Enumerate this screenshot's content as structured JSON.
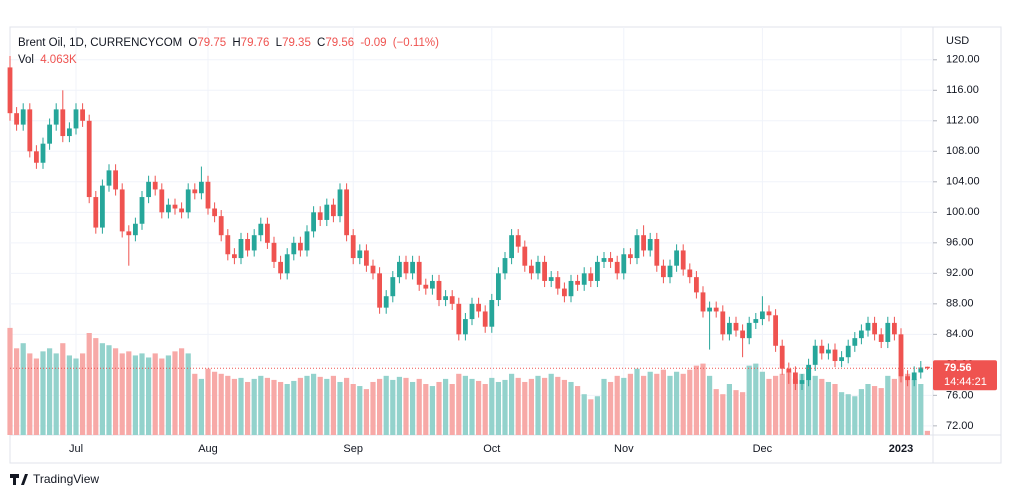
{
  "chart_data": {
    "type": "candlestick",
    "legend": {
      "symbol": "Brent Oil, 1D, CURRENCYCOM",
      "o_label": "O",
      "h_label": "H",
      "l_label": "L",
      "c_label": "C",
      "change": "-0.09",
      "change_pct": "(−0.11%)",
      "vol_label": "Vol",
      "vol_value": "4.063K"
    },
    "currency": "USD",
    "countdown": "14:44:21",
    "brand": "TradingView",
    "up_color": "#26a69a",
    "down_color": "#ef5350",
    "volume_up_color": "#93d2cc",
    "volume_down_color": "#f7a9a7",
    "grid": true,
    "ylim": [
      70.8,
      124.3
    ],
    "yticks": [
      {
        "value": 120,
        "label": "120.00"
      },
      {
        "value": 116,
        "label": "116.00"
      },
      {
        "value": 112,
        "label": "112.00"
      },
      {
        "value": 108,
        "label": "108.00"
      },
      {
        "value": 104,
        "label": "104.00"
      },
      {
        "value": 100,
        "label": "100.00"
      },
      {
        "value": 96,
        "label": "96.00"
      },
      {
        "value": 92,
        "label": "92.00"
      },
      {
        "value": 88,
        "label": "88.00"
      },
      {
        "value": 84,
        "label": "84.00"
      },
      {
        "value": 80,
        "label": "80.00"
      },
      {
        "value": 76,
        "label": "76.00"
      },
      {
        "value": 72,
        "label": "72.00"
      }
    ],
    "volume_lim": [
      0,
      400
    ],
    "categories": [
      null,
      null,
      null,
      null,
      null,
      null,
      null,
      null,
      null,
      null,
      "Jul",
      null,
      null,
      null,
      null,
      null,
      null,
      null,
      null,
      null,
      null,
      null,
      null,
      null,
      null,
      null,
      null,
      null,
      null,
      null,
      "Aug",
      null,
      null,
      null,
      null,
      null,
      null,
      null,
      null,
      null,
      null,
      null,
      null,
      null,
      null,
      null,
      null,
      null,
      null,
      null,
      null,
      null,
      "Sep",
      null,
      null,
      null,
      null,
      null,
      null,
      null,
      null,
      null,
      null,
      null,
      null,
      null,
      null,
      null,
      null,
      null,
      null,
      null,
      null,
      "Oct",
      null,
      null,
      null,
      null,
      null,
      null,
      null,
      null,
      null,
      null,
      null,
      null,
      null,
      null,
      null,
      null,
      null,
      null,
      null,
      "Nov",
      null,
      null,
      null,
      null,
      null,
      null,
      null,
      null,
      null,
      null,
      null,
      null,
      null,
      null,
      null,
      null,
      null,
      null,
      null,
      null,
      "Dec",
      null,
      null,
      null,
      null,
      null,
      null,
      null,
      null,
      null,
      null,
      null,
      null,
      null,
      null,
      null,
      null,
      null,
      null,
      null,
      null,
      "2023",
      null,
      null,
      null,
      null
    ],
    "open": [
      119.0,
      113.0,
      111.5,
      113.5,
      108.0,
      106.5,
      109.0,
      111.5,
      113.5,
      110.0,
      111.0,
      113.5,
      112.0,
      102.0,
      98.0,
      103.5,
      105.5,
      103.0,
      97.5,
      97.0,
      98.5,
      102.0,
      104.0,
      103.0,
      100.0,
      101.0,
      100.5,
      100.0,
      103.0,
      102.5,
      104.0,
      100.5,
      99.5,
      97.0,
      94.5,
      94.0,
      96.5,
      95.0,
      97.0,
      98.5,
      96.0,
      93.5,
      92.0,
      94.5,
      96.0,
      95.0,
      97.5,
      100.0,
      99.0,
      101.0,
      99.5,
      103.0,
      97.0,
      94.0,
      95.0,
      93.0,
      92.0,
      87.5,
      89.0,
      91.5,
      93.5,
      92.0,
      93.5,
      90.5,
      90.0,
      91.0,
      88.5,
      89.0,
      88.0,
      84.0,
      86.0,
      88.0,
      87.0,
      85.0,
      88.5,
      92.0,
      94.0,
      97.0,
      95.5,
      93.0,
      92.0,
      93.5,
      91.0,
      91.5,
      90.0,
      89.0,
      91.0,
      90.5,
      92.0,
      91.0,
      93.5,
      94.0,
      93.5,
      92.0,
      94.5,
      94.0,
      97.0,
      95.0,
      96.5,
      93.0,
      91.5,
      93.0,
      95.0,
      92.5,
      91.5,
      89.5,
      87.0,
      87.5,
      87.0,
      84.0,
      85.5,
      84.5,
      83.5,
      85.5,
      86.0,
      87.0,
      86.5,
      82.5,
      79.5,
      79.0,
      77.5,
      78.0,
      80.0,
      82.5,
      81.5,
      82.0,
      80.5,
      81.0,
      82.5,
      83.5,
      84.5,
      85.5,
      84.0,
      83.0,
      85.5,
      84.0,
      78.5,
      78.0,
      79.0,
      79.75
    ],
    "high": [
      120.5,
      113.8,
      114.3,
      114.3,
      108.8,
      109.8,
      112.3,
      114.3,
      116.0,
      111.8,
      114.3,
      114.3,
      112.8,
      102.8,
      104.3,
      106.3,
      106.3,
      103.8,
      98.3,
      99.3,
      102.8,
      104.8,
      104.8,
      103.8,
      101.8,
      101.8,
      101.3,
      103.8,
      103.8,
      106.0,
      104.8,
      101.3,
      100.3,
      97.8,
      95.3,
      97.3,
      97.3,
      97.8,
      99.3,
      99.3,
      96.8,
      94.3,
      95.3,
      96.8,
      96.8,
      98.3,
      100.8,
      100.8,
      101.8,
      101.8,
      103.8,
      103.8,
      97.8,
      95.8,
      95.8,
      93.8,
      92.8,
      89.8,
      92.3,
      94.3,
      94.3,
      94.3,
      94.3,
      91.3,
      91.8,
      91.8,
      89.8,
      89.8,
      88.8,
      86.8,
      88.8,
      88.8,
      87.8,
      89.3,
      92.8,
      94.8,
      97.8,
      97.8,
      96.3,
      93.8,
      94.3,
      94.3,
      92.3,
      92.3,
      90.8,
      91.8,
      91.8,
      92.8,
      92.8,
      94.3,
      94.8,
      94.8,
      94.3,
      95.3,
      95.3,
      97.8,
      98.3,
      97.3,
      97.3,
      93.8,
      93.8,
      95.8,
      95.8,
      93.3,
      92.3,
      90.3,
      88.3,
      88.3,
      87.8,
      86.3,
      86.3,
      85.3,
      86.3,
      86.8,
      89.0,
      87.8,
      87.3,
      83.3,
      80.3,
      79.8,
      78.8,
      80.8,
      83.3,
      83.3,
      82.8,
      82.8,
      81.8,
      83.3,
      84.3,
      85.3,
      86.3,
      86.3,
      84.8,
      86.3,
      86.3,
      84.8,
      79.3,
      79.8,
      80.5,
      79.76
    ],
    "low": [
      112.0,
      110.7,
      110.7,
      107.2,
      105.7,
      105.7,
      108.2,
      110.7,
      109.2,
      109.2,
      110.2,
      111.2,
      101.2,
      97.2,
      97.2,
      102.7,
      102.2,
      96.7,
      93.0,
      96.2,
      97.7,
      101.2,
      102.2,
      99.2,
      99.2,
      99.7,
      99.2,
      99.2,
      101.7,
      101.7,
      99.7,
      98.7,
      96.2,
      93.7,
      93.2,
      93.2,
      94.2,
      94.2,
      96.2,
      95.2,
      92.7,
      91.2,
      91.2,
      93.7,
      94.2,
      94.2,
      96.7,
      98.2,
      98.2,
      98.7,
      98.7,
      96.2,
      93.2,
      93.2,
      92.2,
      91.2,
      86.7,
      86.7,
      88.2,
      90.7,
      91.2,
      91.2,
      89.7,
      89.2,
      89.2,
      87.7,
      87.7,
      87.2,
      83.2,
      83.2,
      85.2,
      86.2,
      84.2,
      84.2,
      87.7,
      91.2,
      93.2,
      94.7,
      92.2,
      91.2,
      91.2,
      90.2,
      90.2,
      89.2,
      88.2,
      88.2,
      89.7,
      89.7,
      90.2,
      90.2,
      92.7,
      92.7,
      91.2,
      91.2,
      93.2,
      93.2,
      94.2,
      94.2,
      92.2,
      90.7,
      90.7,
      92.2,
      91.7,
      90.7,
      88.7,
      86.2,
      82.0,
      86.2,
      83.2,
      83.2,
      83.7,
      81.0,
      82.7,
      84.7,
      85.2,
      85.7,
      81.7,
      78.7,
      77.5,
      76.7,
      76.7,
      77.2,
      79.2,
      80.7,
      80.7,
      79.7,
      79.7,
      80.2,
      81.7,
      82.7,
      83.7,
      83.2,
      82.2,
      82.2,
      83.2,
      77.7,
      77.2,
      77.2,
      78.2,
      79.35
    ],
    "close": [
      113.0,
      111.5,
      113.5,
      108.0,
      106.5,
      109.0,
      111.5,
      113.5,
      110.0,
      111.0,
      113.5,
      112.0,
      102.0,
      98.0,
      103.5,
      105.5,
      103.0,
      97.5,
      97.0,
      98.5,
      102.0,
      104.0,
      103.0,
      100.0,
      101.0,
      100.5,
      100.0,
      103.0,
      102.5,
      104.0,
      100.5,
      99.5,
      97.0,
      94.5,
      94.0,
      96.5,
      95.0,
      97.0,
      98.5,
      96.0,
      93.5,
      92.0,
      94.5,
      96.0,
      95.0,
      97.5,
      100.0,
      99.0,
      101.0,
      99.5,
      103.0,
      97.0,
      94.0,
      95.0,
      93.0,
      92.0,
      87.5,
      89.0,
      91.5,
      93.5,
      92.0,
      93.5,
      90.5,
      90.0,
      91.0,
      88.5,
      89.0,
      88.0,
      84.0,
      86.0,
      88.0,
      87.0,
      85.0,
      88.5,
      92.0,
      94.0,
      97.0,
      95.5,
      93.0,
      92.0,
      93.5,
      91.0,
      91.5,
      90.0,
      89.0,
      91.0,
      90.5,
      92.0,
      91.0,
      93.5,
      94.0,
      93.5,
      92.0,
      94.5,
      94.0,
      97.0,
      95.0,
      96.5,
      93.0,
      91.5,
      93.0,
      95.0,
      92.5,
      91.5,
      89.5,
      87.0,
      87.5,
      87.0,
      84.0,
      85.5,
      84.5,
      83.5,
      85.5,
      86.0,
      87.0,
      86.5,
      82.5,
      79.5,
      79.0,
      77.5,
      78.0,
      80.0,
      82.5,
      81.5,
      82.0,
      80.5,
      81.0,
      82.5,
      83.5,
      84.5,
      85.5,
      84.0,
      83.0,
      85.5,
      84.0,
      78.5,
      78.0,
      79.0,
      79.65,
      79.56
    ],
    "volume": [
      105,
      85,
      90,
      80,
      75,
      82,
      85,
      80,
      90,
      78,
      75,
      80,
      100,
      95,
      90,
      88,
      85,
      80,
      82,
      78,
      80,
      76,
      80,
      75,
      78,
      82,
      85,
      80,
      60,
      55,
      65,
      62,
      60,
      58,
      55,
      56,
      52,
      55,
      58,
      56,
      54,
      52,
      50,
      53,
      56,
      58,
      60,
      57,
      55,
      58,
      52,
      56,
      50,
      48,
      45,
      52,
      55,
      58,
      54,
      57,
      56,
      52,
      55,
      50,
      48,
      52,
      55,
      50,
      60,
      58,
      55,
      53,
      50,
      56,
      52,
      54,
      60,
      56,
      52,
      55,
      58,
      56,
      60,
      57,
      54,
      52,
      48,
      40,
      35,
      38,
      55,
      52,
      58,
      56,
      60,
      65,
      58,
      62,
      60,
      64,
      58,
      62,
      60,
      64,
      68,
      70,
      58,
      45,
      40,
      50,
      44,
      42,
      68,
      70,
      62,
      55,
      58,
      60,
      62,
      55,
      60,
      65,
      58,
      55,
      52,
      50,
      42,
      40,
      38,
      45,
      50,
      48,
      46,
      58,
      55,
      65,
      60,
      55,
      50,
      4.063
    ]
  }
}
